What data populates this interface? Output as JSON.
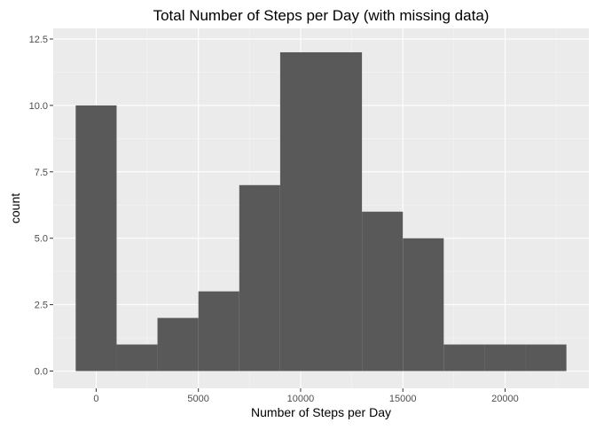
{
  "chart_data": {
    "type": "bar",
    "title": "Total Number of Steps per Day (with missing data)",
    "xlabel": "Number of Steps per Day",
    "ylabel": "count",
    "xlim": [
      -2100,
      24100
    ],
    "ylim": [
      -0.65,
      12.9
    ],
    "x_ticks": [
      0,
      5000,
      10000,
      15000,
      20000
    ],
    "x_tick_labels": [
      "0",
      "5000",
      "10000",
      "15000",
      "20000"
    ],
    "y_ticks": [
      0,
      2.5,
      5,
      7.5,
      10,
      12.5
    ],
    "y_tick_labels": [
      "0.0",
      "2.5",
      "5.0",
      "7.5",
      "10.0",
      "12.5"
    ],
    "bin_width": 2000,
    "bins": [
      {
        "x0": -1000,
        "x1": 1000,
        "count": 10
      },
      {
        "x0": 1000,
        "x1": 3000,
        "count": 1
      },
      {
        "x0": 3000,
        "x1": 5000,
        "count": 2
      },
      {
        "x0": 5000,
        "x1": 7000,
        "count": 3
      },
      {
        "x0": 7000,
        "x1": 9000,
        "count": 7
      },
      {
        "x0": 9000,
        "x1": 11000,
        "count": 12
      },
      {
        "x0": 11000,
        "x1": 13000,
        "count": 12
      },
      {
        "x0": 13000,
        "x1": 15000,
        "count": 6
      },
      {
        "x0": 15000,
        "x1": 17000,
        "count": 5
      },
      {
        "x0": 17000,
        "x1": 19000,
        "count": 1
      },
      {
        "x0": 19000,
        "x1": 21000,
        "count": 1
      },
      {
        "x0": 21000,
        "x1": 23000,
        "count": 1
      }
    ],
    "grid": true,
    "legend": "none",
    "colors": {
      "panel_background": "#ebebeb",
      "grid_major": "#ffffff",
      "grid_minor": "#f5f5f5",
      "bar_fill": "#595959",
      "tick_mark": "#333333"
    }
  }
}
